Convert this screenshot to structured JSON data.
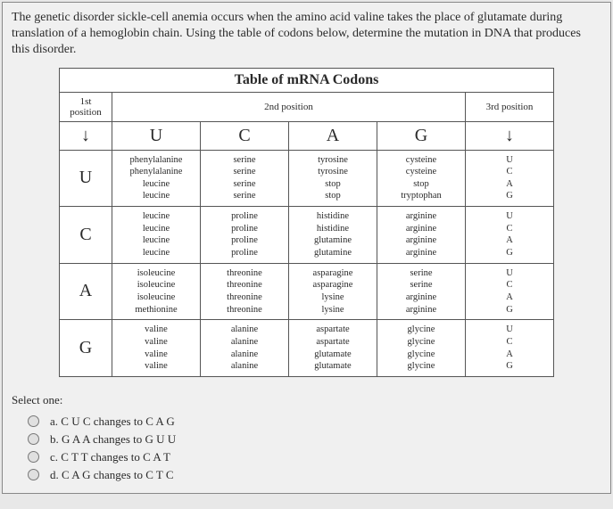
{
  "question_text": "The genetic disorder sickle-cell anemia occurs when the amino acid valine takes the place of glutamate during translation of a hemoglobin chain. Using the table of codons below, determine the mutation in DNA that produces this disorder.",
  "table": {
    "title": "Table of mRNA Codons",
    "p1": "1st position",
    "p2": "2nd position",
    "p3": "3rd position",
    "bases": [
      "U",
      "C",
      "A",
      "G"
    ],
    "rows": {
      "U": {
        "U": [
          "phenylalanine",
          "phenylalanine",
          "leucine",
          "leucine"
        ],
        "C": [
          "serine",
          "serine",
          "serine",
          "serine"
        ],
        "A": [
          "tyrosine",
          "tyrosine",
          "stop",
          "stop"
        ],
        "G": [
          "cysteine",
          "cysteine",
          "stop",
          "tryptophan"
        ]
      },
      "C": {
        "U": [
          "leucine",
          "leucine",
          "leucine",
          "leucine"
        ],
        "C": [
          "proline",
          "proline",
          "proline",
          "proline"
        ],
        "A": [
          "histidine",
          "histidine",
          "glutamine",
          "glutamine"
        ],
        "G": [
          "arginine",
          "arginine",
          "arginine",
          "arginine"
        ]
      },
      "A": {
        "U": [
          "isoleucine",
          "isoleucine",
          "isoleucine",
          "methionine"
        ],
        "C": [
          "threonine",
          "threonine",
          "threonine",
          "threonine"
        ],
        "A": [
          "asparagine",
          "asparagine",
          "lysine",
          "lysine"
        ],
        "G": [
          "serine",
          "serine",
          "arginine",
          "arginine"
        ]
      },
      "G": {
        "U": [
          "valine",
          "valine",
          "valine",
          "valine"
        ],
        "C": [
          "alanine",
          "alanine",
          "alanine",
          "alanine"
        ],
        "A": [
          "aspartate",
          "aspartate",
          "glutamate",
          "glutamate"
        ],
        "G": [
          "glycine",
          "glycine",
          "glycine",
          "glycine"
        ]
      }
    }
  },
  "select_label": "Select one:",
  "options": [
    "a. C U C changes to C A G",
    "b. G A A changes to G U U",
    "c. C T T changes to C A T",
    "d. C A G changes to C T C"
  ]
}
